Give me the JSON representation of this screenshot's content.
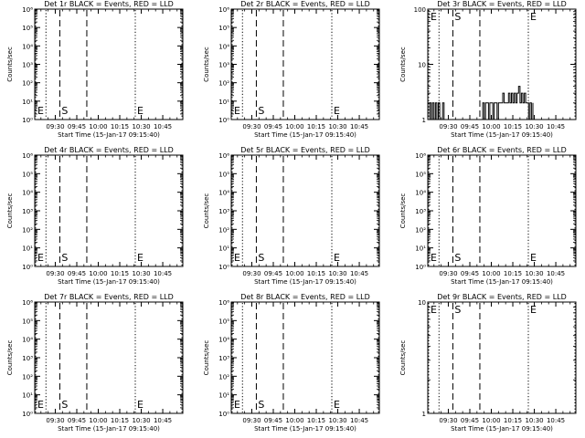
{
  "chart_data": [
    {
      "type": "line",
      "title": "Det 1r BLACK = Events, RED = LLD",
      "xlabel": "Start Time (15-Jan-17 09:15:40)",
      "ylabel": "Counts/sec",
      "scale": "log",
      "ylim": [
        1,
        1000000.0
      ],
      "yticks": [
        "10⁰",
        "10¹",
        "10²",
        "10³",
        "10⁴",
        "10⁵",
        "10⁶"
      ],
      "xlim": [
        "09:15:40",
        "10:59:00"
      ],
      "xticks": [
        "09:30",
        "09:45",
        "10:00",
        "10:15",
        "10:30",
        "10:45"
      ],
      "markers": [
        {
          "label": "E",
          "time": "09:15:40",
          "style": "dotted"
        },
        {
          "label": "",
          "time": "09:23:30",
          "style": "dotted"
        },
        {
          "label": "S",
          "time": "09:33:10",
          "style": "dashed"
        },
        {
          "label": "",
          "time": "09:52:00",
          "style": "dashed"
        },
        {
          "label": "E",
          "time": "10:25:50",
          "style": "dotted"
        },
        {
          "label": "",
          "time": "10:59:00",
          "style": "dotted"
        }
      ],
      "series": []
    },
    {
      "type": "line",
      "title": "Det 2r BLACK = Events, RED = LLD",
      "xlabel": "Start Time (15-Jan-17 09:15:40)",
      "ylabel": "Counts/sec",
      "scale": "log",
      "ylim": [
        1,
        1000000.0
      ],
      "yticks": [
        "10⁰",
        "10¹",
        "10²",
        "10³",
        "10⁴",
        "10⁵",
        "10⁶"
      ],
      "xlim": [
        "09:15:40",
        "10:59:00"
      ],
      "xticks": [
        "09:30",
        "09:45",
        "10:00",
        "10:15",
        "10:30",
        "10:45"
      ],
      "markers": [
        {
          "label": "E",
          "time": "09:15:40",
          "style": "dotted"
        },
        {
          "label": "",
          "time": "09:23:30",
          "style": "dotted"
        },
        {
          "label": "S",
          "time": "09:33:10",
          "style": "dashed"
        },
        {
          "label": "",
          "time": "09:52:00",
          "style": "dashed"
        },
        {
          "label": "E",
          "time": "10:25:50",
          "style": "dotted"
        },
        {
          "label": "",
          "time": "10:59:00",
          "style": "dotted"
        }
      ],
      "series": []
    },
    {
      "type": "line",
      "title": "Det 3r BLACK = Events, RED = LLD",
      "xlabel": "Start Time (15-Jan-17 09:15:40)",
      "ylabel": "Counts/sec",
      "scale": "log",
      "ylim": [
        1,
        100
      ],
      "yticks": [
        "1",
        "10",
        "100"
      ],
      "xlim": [
        "09:15:40",
        "10:59:00"
      ],
      "xticks": [
        "09:30",
        "09:45",
        "10:00",
        "10:15",
        "10:30",
        "10:45"
      ],
      "markers": [
        {
          "label": "E",
          "time": "09:15:40",
          "style": "dotted"
        },
        {
          "label": "",
          "time": "09:23:30",
          "style": "dotted"
        },
        {
          "label": "S",
          "time": "09:33:10",
          "style": "dashed"
        },
        {
          "label": "",
          "time": "09:52:00",
          "style": "dashed"
        },
        {
          "label": "E",
          "time": "10:25:50",
          "style": "dotted"
        },
        {
          "label": "",
          "time": "10:59:00",
          "style": "dotted"
        }
      ],
      "series": [
        {
          "color": "#000000",
          "x": [
            "09:16:30",
            "09:17:00",
            "09:18:00",
            "09:19:00",
            "09:20:00",
            "09:21:00",
            "09:22:00",
            "09:23:00",
            "09:24:00",
            "09:25:00",
            "09:26:00",
            "09:27:00",
            "09:53:00",
            "09:54:00",
            "09:55:00",
            "09:56:00",
            "09:57:00",
            "09:58:00",
            "09:59:00",
            "10:00:00",
            "10:01:00",
            "10:02:00",
            "10:03:00",
            "10:04:00",
            "10:05:00",
            "10:06:00",
            "10:07:00",
            "10:08:00",
            "10:09:00",
            "10:10:00",
            "10:11:00",
            "10:12:00",
            "10:13:00",
            "10:14:00",
            "10:15:00",
            "10:16:00",
            "10:17:00",
            "10:18:00",
            "10:19:00",
            "10:20:00",
            "10:21:00",
            "10:22:00",
            "10:23:00",
            "10:24:00",
            "10:25:00",
            "10:26:00",
            "10:27:00",
            "10:28:00",
            "10:29:00"
          ],
          "y": [
            1,
            2,
            1,
            2,
            1,
            2,
            1,
            2,
            1,
            1,
            2,
            1,
            1,
            2,
            1,
            2,
            2,
            1,
            2,
            2,
            1,
            2,
            2,
            1,
            2,
            2,
            2,
            3,
            2,
            2,
            2,
            3,
            2,
            3,
            2,
            3,
            2,
            3,
            4,
            2,
            3,
            2,
            3,
            2,
            2,
            1,
            2,
            1,
            2
          ]
        }
      ]
    },
    {
      "type": "line",
      "title": "Det 4r BLACK = Events, RED = LLD",
      "xlabel": "Start Time (15-Jan-17 09:15:40)",
      "ylabel": "Counts/sec",
      "scale": "log",
      "ylim": [
        1,
        1000000.0
      ],
      "yticks": [
        "10⁰",
        "10¹",
        "10²",
        "10³",
        "10⁴",
        "10⁵",
        "10⁶"
      ],
      "xlim": [
        "09:15:40",
        "10:59:00"
      ],
      "xticks": [
        "09:30",
        "09:45",
        "10:00",
        "10:15",
        "10:30",
        "10:45"
      ],
      "markers": [
        {
          "label": "E",
          "time": "09:15:40",
          "style": "dotted"
        },
        {
          "label": "",
          "time": "09:23:30",
          "style": "dotted"
        },
        {
          "label": "S",
          "time": "09:33:10",
          "style": "dashed"
        },
        {
          "label": "",
          "time": "09:52:00",
          "style": "dashed"
        },
        {
          "label": "E",
          "time": "10:25:50",
          "style": "dotted"
        },
        {
          "label": "",
          "time": "10:59:00",
          "style": "dotted"
        }
      ],
      "series": []
    },
    {
      "type": "line",
      "title": "Det 5r BLACK = Events, RED = LLD",
      "xlabel": "Start Time (15-Jan-17 09:15:40)",
      "ylabel": "Counts/sec",
      "scale": "log",
      "ylim": [
        1,
        1000000.0
      ],
      "yticks": [
        "10⁰",
        "10¹",
        "10²",
        "10³",
        "10⁴",
        "10⁵",
        "10⁶"
      ],
      "xlim": [
        "09:15:40",
        "10:59:00"
      ],
      "xticks": [
        "09:30",
        "09:45",
        "10:00",
        "10:15",
        "10:30",
        "10:45"
      ],
      "markers": [
        {
          "label": "E",
          "time": "09:15:40",
          "style": "dotted"
        },
        {
          "label": "",
          "time": "09:23:30",
          "style": "dotted"
        },
        {
          "label": "S",
          "time": "09:33:10",
          "style": "dashed"
        },
        {
          "label": "",
          "time": "09:52:00",
          "style": "dashed"
        },
        {
          "label": "E",
          "time": "10:25:50",
          "style": "dotted"
        },
        {
          "label": "",
          "time": "10:59:00",
          "style": "dotted"
        }
      ],
      "series": []
    },
    {
      "type": "line",
      "title": "Det 6r BLACK = Events, RED = LLD",
      "xlabel": "Start Time (15-Jan-17 09:15:40)",
      "ylabel": "Counts/sec",
      "scale": "log",
      "ylim": [
        1,
        1000000.0
      ],
      "yticks": [
        "10⁰",
        "10¹",
        "10²",
        "10³",
        "10⁴",
        "10⁵",
        "10⁶"
      ],
      "xlim": [
        "09:15:40",
        "10:59:00"
      ],
      "xticks": [
        "09:30",
        "09:45",
        "10:00",
        "10:15",
        "10:30",
        "10:45"
      ],
      "markers": [
        {
          "label": "E",
          "time": "09:15:40",
          "style": "dotted"
        },
        {
          "label": "",
          "time": "09:23:30",
          "style": "dotted"
        },
        {
          "label": "S",
          "time": "09:33:10",
          "style": "dashed"
        },
        {
          "label": "",
          "time": "09:52:00",
          "style": "dashed"
        },
        {
          "label": "E",
          "time": "10:25:50",
          "style": "dotted"
        },
        {
          "label": "",
          "time": "10:59:00",
          "style": "dotted"
        }
      ],
      "series": []
    },
    {
      "type": "line",
      "title": "Det 7r BLACK = Events, RED = LLD",
      "xlabel": "Start Time (15-Jan-17 09:15:40)",
      "ylabel": "Counts/sec",
      "scale": "log",
      "ylim": [
        1,
        1000000.0
      ],
      "yticks": [
        "10⁰",
        "10¹",
        "10²",
        "10³",
        "10⁴",
        "10⁵",
        "10⁶"
      ],
      "xlim": [
        "09:15:40",
        "10:59:00"
      ],
      "xticks": [
        "09:30",
        "09:45",
        "10:00",
        "10:15",
        "10:30",
        "10:45"
      ],
      "markers": [
        {
          "label": "E",
          "time": "09:15:40",
          "style": "dotted"
        },
        {
          "label": "",
          "time": "09:23:30",
          "style": "dotted"
        },
        {
          "label": "S",
          "time": "09:33:10",
          "style": "dashed"
        },
        {
          "label": "",
          "time": "09:52:00",
          "style": "dashed"
        },
        {
          "label": "E",
          "time": "10:25:50",
          "style": "dotted"
        },
        {
          "label": "",
          "time": "10:59:00",
          "style": "dotted"
        }
      ],
      "series": []
    },
    {
      "type": "line",
      "title": "Det 8r BLACK = Events, RED = LLD",
      "xlabel": "Start Time (15-Jan-17 09:15:40)",
      "ylabel": "Counts/sec",
      "scale": "log",
      "ylim": [
        1,
        1000000.0
      ],
      "yticks": [
        "10⁰",
        "10¹",
        "10²",
        "10³",
        "10⁴",
        "10⁵",
        "10⁶"
      ],
      "xlim": [
        "09:15:40",
        "10:59:00"
      ],
      "xticks": [
        "09:30",
        "09:45",
        "10:00",
        "10:15",
        "10:30",
        "10:45"
      ],
      "markers": [
        {
          "label": "E",
          "time": "09:15:40",
          "style": "dotted"
        },
        {
          "label": "",
          "time": "09:23:30",
          "style": "dotted"
        },
        {
          "label": "S",
          "time": "09:33:10",
          "style": "dashed"
        },
        {
          "label": "",
          "time": "09:52:00",
          "style": "dashed"
        },
        {
          "label": "E",
          "time": "10:25:50",
          "style": "dotted"
        },
        {
          "label": "",
          "time": "10:59:00",
          "style": "dotted"
        }
      ],
      "series": []
    },
    {
      "type": "line",
      "title": "Det 9r BLACK = Events, RED = LLD",
      "xlabel": "Start Time (15-Jan-17 09:15:40)",
      "ylabel": "Counts/sec",
      "scale": "log",
      "ylim": [
        1,
        10
      ],
      "yticks": [
        "1",
        "10"
      ],
      "xlim": [
        "09:15:40",
        "10:59:00"
      ],
      "xticks": [
        "09:30",
        "09:45",
        "10:00",
        "10:15",
        "10:30",
        "10:45"
      ],
      "markers": [
        {
          "label": "E",
          "time": "09:15:40",
          "style": "dotted"
        },
        {
          "label": "",
          "time": "09:23:30",
          "style": "dotted"
        },
        {
          "label": "S",
          "time": "09:33:10",
          "style": "dashed"
        },
        {
          "label": "",
          "time": "09:52:00",
          "style": "dashed"
        },
        {
          "label": "E",
          "time": "10:25:50",
          "style": "dotted"
        },
        {
          "label": "",
          "time": "10:59:00",
          "style": "dotted"
        }
      ],
      "series": []
    }
  ]
}
